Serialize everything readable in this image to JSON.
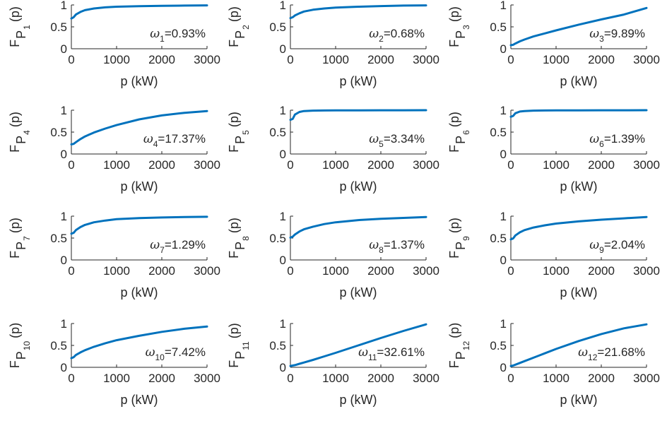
{
  "figure": {
    "colors": {
      "line": "#0072BD",
      "axis": "#262626",
      "text": "#262626",
      "background": "#ffffff"
    },
    "layout": "4 rows x 3 columns"
  },
  "chart_data": [
    {
      "type": "line",
      "index": "1",
      "omega": "1",
      "percent": "=0.93%",
      "xlabel": "p (kW)",
      "ylabel_main": "F",
      "ylabel_sub": "P",
      "ylabel_idx": "1",
      "ylabel_tail": "(p)",
      "xlim": [
        0,
        3000
      ],
      "ylim": [
        0,
        1
      ],
      "xticks": [
        "0",
        "1000",
        "2000",
        "3000"
      ],
      "yticks": [
        "0",
        "0.5",
        "1"
      ],
      "legend": "none",
      "grid": false,
      "series": [
        {
          "x": [
            0,
            50,
            100,
            200,
            300,
            500,
            750,
            1000,
            1500,
            2000,
            2500,
            3000
          ],
          "y": [
            0.69,
            0.72,
            0.78,
            0.84,
            0.88,
            0.92,
            0.945,
            0.96,
            0.972,
            0.98,
            0.985,
            0.99
          ]
        }
      ]
    },
    {
      "type": "line",
      "index": "2",
      "omega": "2",
      "percent": "=0.68%",
      "xlabel": "p (kW)",
      "ylabel_main": "F",
      "ylabel_sub": "P",
      "ylabel_idx": "2",
      "ylabel_tail": "(p)",
      "xlim": [
        0,
        3000
      ],
      "ylim": [
        0,
        1
      ],
      "xticks": [
        "0",
        "1000",
        "2000",
        "3000"
      ],
      "yticks": [
        "0",
        "0.5",
        "1"
      ],
      "legend": "none",
      "grid": false,
      "series": [
        {
          "x": [
            0,
            50,
            100,
            200,
            300,
            500,
            750,
            1000,
            1500,
            2000,
            2500,
            3000
          ],
          "y": [
            0.7,
            0.72,
            0.76,
            0.81,
            0.85,
            0.89,
            0.92,
            0.94,
            0.96,
            0.975,
            0.985,
            0.99
          ]
        }
      ]
    },
    {
      "type": "line",
      "index": "3",
      "omega": "3",
      "percent": "=9.89%",
      "xlabel": "p (kW)",
      "ylabel_main": "F",
      "ylabel_sub": "P",
      "ylabel_idx": "3",
      "ylabel_tail": "(p)",
      "xlim": [
        0,
        3000
      ],
      "ylim": [
        0,
        1
      ],
      "xticks": [
        "0",
        "1000",
        "2000",
        "3000"
      ],
      "yticks": [
        "0",
        "0.5",
        "1"
      ],
      "legend": "none",
      "grid": false,
      "series": [
        {
          "x": [
            0,
            50,
            100,
            200,
            300,
            500,
            750,
            1000,
            1500,
            2000,
            2500,
            3000
          ],
          "y": [
            0.08,
            0.09,
            0.12,
            0.17,
            0.21,
            0.28,
            0.35,
            0.42,
            0.55,
            0.67,
            0.78,
            0.93
          ]
        }
      ]
    },
    {
      "type": "line",
      "index": "4",
      "omega": "4",
      "percent": "=17.37%",
      "xlabel": "p (kW)",
      "ylabel_main": "F",
      "ylabel_sub": "P",
      "ylabel_idx": "4",
      "ylabel_tail": "(p)",
      "xlim": [
        0,
        3000
      ],
      "ylim": [
        0,
        1
      ],
      "xticks": [
        "0",
        "1000",
        "2000",
        "3000"
      ],
      "yticks": [
        "0",
        "0.5",
        "1"
      ],
      "legend": "none",
      "grid": false,
      "series": [
        {
          "x": [
            0,
            50,
            100,
            200,
            300,
            500,
            750,
            1000,
            1500,
            2000,
            2500,
            3000
          ],
          "y": [
            0.22,
            0.23,
            0.27,
            0.34,
            0.4,
            0.49,
            0.58,
            0.66,
            0.79,
            0.88,
            0.94,
            0.98
          ]
        }
      ]
    },
    {
      "type": "line",
      "index": "5",
      "omega": "5",
      "percent": "=3.34%",
      "xlabel": "p (kW)",
      "ylabel_main": "F",
      "ylabel_sub": "P",
      "ylabel_idx": "5",
      "ylabel_tail": "(p)",
      "xlim": [
        0,
        3000
      ],
      "ylim": [
        0,
        1
      ],
      "xticks": [
        "0",
        "1000",
        "2000",
        "3000"
      ],
      "yticks": [
        "0",
        "0.5",
        "1"
      ],
      "legend": "none",
      "grid": false,
      "series": [
        {
          "x": [
            0,
            50,
            100,
            200,
            300,
            500,
            750,
            1000,
            1500,
            2000,
            2500,
            3000
          ],
          "y": [
            0.78,
            0.8,
            0.9,
            0.96,
            0.98,
            0.99,
            0.993,
            0.995,
            0.997,
            0.998,
            0.999,
            1.0
          ]
        }
      ]
    },
    {
      "type": "line",
      "index": "6",
      "omega": "6",
      "percent": "=1.39%",
      "xlabel": "p (kW)",
      "ylabel_main": "F",
      "ylabel_sub": "P",
      "ylabel_idx": "6",
      "ylabel_tail": "(p)",
      "xlim": [
        0,
        3000
      ],
      "ylim": [
        0,
        1
      ],
      "xticks": [
        "0",
        "1000",
        "2000",
        "3000"
      ],
      "yticks": [
        "0",
        "0.5",
        "1"
      ],
      "legend": "none",
      "grid": false,
      "series": [
        {
          "x": [
            0,
            50,
            100,
            200,
            300,
            500,
            750,
            1000,
            1500,
            2000,
            2500,
            3000
          ],
          "y": [
            0.85,
            0.87,
            0.93,
            0.97,
            0.98,
            0.99,
            0.993,
            0.995,
            0.997,
            0.998,
            0.999,
            1.0
          ]
        }
      ]
    },
    {
      "type": "line",
      "index": "7",
      "omega": "7",
      "percent": "=1.29%",
      "xlabel": "p (kW)",
      "ylabel_main": "F",
      "ylabel_sub": "P",
      "ylabel_idx": "7",
      "ylabel_tail": "(p)",
      "xlim": [
        0,
        3000
      ],
      "ylim": [
        0,
        1
      ],
      "xticks": [
        "0",
        "1000",
        "2000",
        "3000"
      ],
      "yticks": [
        "0",
        "0.5",
        "1"
      ],
      "legend": "none",
      "grid": false,
      "series": [
        {
          "x": [
            0,
            50,
            100,
            200,
            300,
            500,
            750,
            1000,
            1500,
            2000,
            2500,
            3000
          ],
          "y": [
            0.6,
            0.62,
            0.68,
            0.75,
            0.8,
            0.86,
            0.9,
            0.93,
            0.955,
            0.97,
            0.98,
            0.985
          ]
        }
      ]
    },
    {
      "type": "line",
      "index": "8",
      "omega": "8",
      "percent": "=1.37%",
      "xlabel": "p (kW)",
      "ylabel_main": "F",
      "ylabel_sub": "P",
      "ylabel_idx": "8",
      "ylabel_tail": "(p)",
      "xlim": [
        0,
        3000
      ],
      "ylim": [
        0,
        1
      ],
      "xticks": [
        "0",
        "1000",
        "2000",
        "3000"
      ],
      "yticks": [
        "0",
        "0.5",
        "1"
      ],
      "legend": "none",
      "grid": false,
      "series": [
        {
          "x": [
            0,
            50,
            100,
            200,
            300,
            500,
            750,
            1000,
            1500,
            2000,
            2500,
            3000
          ],
          "y": [
            0.51,
            0.53,
            0.58,
            0.65,
            0.7,
            0.76,
            0.82,
            0.86,
            0.91,
            0.94,
            0.96,
            0.98
          ]
        }
      ]
    },
    {
      "type": "line",
      "index": "9",
      "omega": "9",
      "percent": "=2.04%",
      "xlabel": "p (kW)",
      "ylabel_main": "F",
      "ylabel_sub": "P",
      "ylabel_idx": "9",
      "ylabel_tail": "(p)",
      "xlim": [
        0,
        3000
      ],
      "ylim": [
        0,
        1
      ],
      "xticks": [
        "0",
        "1000",
        "2000",
        "3000"
      ],
      "yticks": [
        "0",
        "0.5",
        "1"
      ],
      "legend": "none",
      "grid": false,
      "series": [
        {
          "x": [
            0,
            50,
            100,
            200,
            300,
            500,
            750,
            1000,
            1500,
            2000,
            2500,
            3000
          ],
          "y": [
            0.47,
            0.49,
            0.56,
            0.63,
            0.68,
            0.74,
            0.79,
            0.83,
            0.88,
            0.92,
            0.95,
            0.98
          ]
        }
      ]
    },
    {
      "type": "line",
      "index": "10",
      "omega": "10",
      "percent": "=7.42%",
      "xlabel": "p (kW)",
      "ylabel_main": "F",
      "ylabel_sub": "P",
      "ylabel_idx": "10",
      "ylabel_tail": "(p)",
      "xlim": [
        0,
        3000
      ],
      "ylim": [
        0,
        1
      ],
      "xticks": [
        "0",
        "1000",
        "2000",
        "3000"
      ],
      "yticks": [
        "0",
        "0.5",
        "1"
      ],
      "legend": "none",
      "grid": false,
      "series": [
        {
          "x": [
            0,
            50,
            100,
            200,
            300,
            500,
            750,
            1000,
            1500,
            2000,
            2500,
            3000
          ],
          "y": [
            0.21,
            0.23,
            0.28,
            0.34,
            0.39,
            0.47,
            0.55,
            0.62,
            0.72,
            0.81,
            0.88,
            0.93
          ]
        }
      ]
    },
    {
      "type": "line",
      "index": "11",
      "omega": "11",
      "percent": "=32.61%",
      "xlabel": "p (kW)",
      "ylabel_main": "F",
      "ylabel_sub": "P",
      "ylabel_idx": "11",
      "ylabel_tail": "(p)",
      "xlim": [
        0,
        3000
      ],
      "ylim": [
        0,
        1
      ],
      "xticks": [
        "0",
        "1000",
        "2000",
        "3000"
      ],
      "yticks": [
        "0",
        "0.5",
        "1"
      ],
      "legend": "none",
      "grid": false,
      "series": [
        {
          "x": [
            0,
            50,
            100,
            200,
            300,
            500,
            750,
            1000,
            1500,
            2000,
            2500,
            3000
          ],
          "y": [
            0.03,
            0.04,
            0.05,
            0.08,
            0.11,
            0.17,
            0.25,
            0.33,
            0.5,
            0.67,
            0.83,
            0.98
          ]
        }
      ]
    },
    {
      "type": "line",
      "index": "12",
      "omega": "12",
      "percent": "=21.68%",
      "xlabel": "p (kW)",
      "ylabel_main": "F",
      "ylabel_sub": "P",
      "ylabel_idx": "12",
      "ylabel_tail": "(p)",
      "xlim": [
        0,
        3000
      ],
      "ylim": [
        0,
        1
      ],
      "xticks": [
        "0",
        "1000",
        "2000",
        "3000"
      ],
      "yticks": [
        "0",
        "0.5",
        "1"
      ],
      "legend": "none",
      "grid": false,
      "series": [
        {
          "x": [
            0,
            50,
            100,
            200,
            300,
            500,
            750,
            1000,
            1500,
            2000,
            2500,
            3000
          ],
          "y": [
            0.03,
            0.04,
            0.06,
            0.1,
            0.14,
            0.22,
            0.32,
            0.42,
            0.6,
            0.76,
            0.89,
            0.98
          ]
        }
      ]
    }
  ]
}
